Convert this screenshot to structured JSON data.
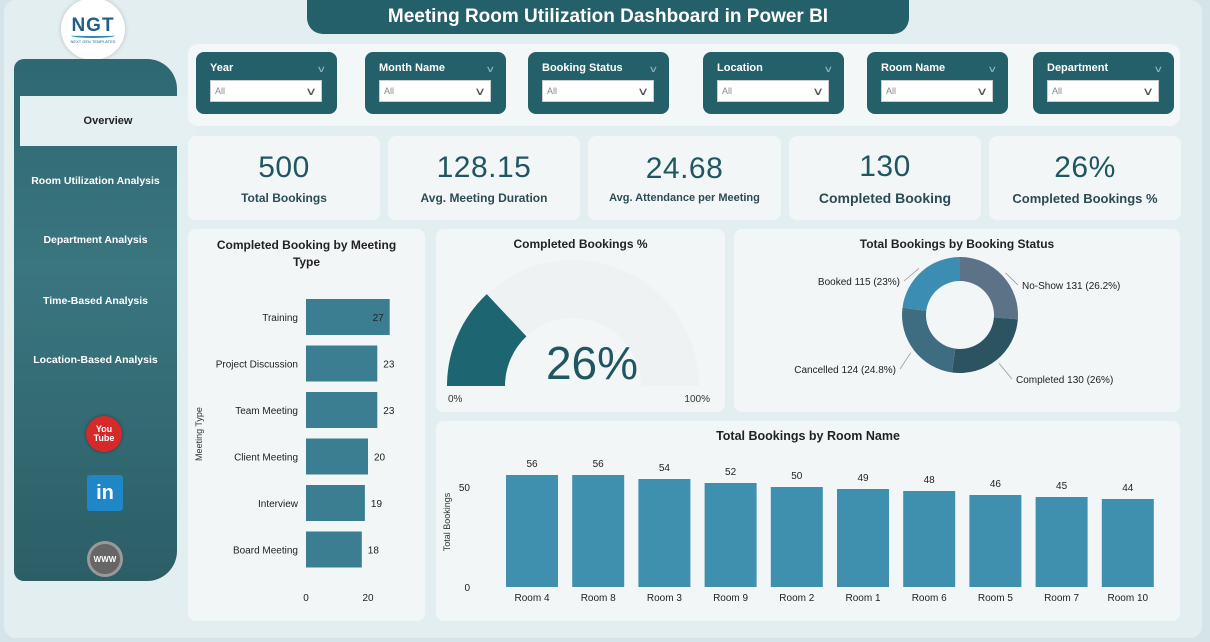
{
  "title": "Meeting Room Utilization Dashboard in Power BI",
  "logo": {
    "text": "NGT",
    "subtext": "NEXT GEN TEMPLATES"
  },
  "sidebar": {
    "items": [
      {
        "label": "Overview"
      },
      {
        "label": "Room Utilization Analysis"
      },
      {
        "label": "Department Analysis"
      },
      {
        "label": "Time-Based Analysis"
      },
      {
        "label": "Location-Based Analysis"
      }
    ],
    "social": {
      "youtube_top": "You",
      "youtube_bottom": "Tube",
      "linkedin": "in",
      "web": "WWW"
    }
  },
  "filters": [
    {
      "label": "Year",
      "value": "All"
    },
    {
      "label": "Month Name",
      "value": "All"
    },
    {
      "label": "Booking Status",
      "value": "All"
    },
    {
      "label": "Location",
      "value": "All"
    },
    {
      "label": "Room Name",
      "value": "All"
    },
    {
      "label": "Department",
      "value": "All"
    }
  ],
  "kpis": [
    {
      "value": "500",
      "label": "Total Bookings"
    },
    {
      "value": "128.15",
      "label": "Avg. Meeting Duration"
    },
    {
      "value": "24.68",
      "label": "Avg. Attendance per Meeting"
    },
    {
      "value": "130",
      "label": "Completed Booking"
    },
    {
      "value": "26%",
      "label": "Completed Bookings %"
    }
  ],
  "colors": {
    "bar": "#3b7e92",
    "bar_room": "#3f8fae",
    "gauge": "#1e6572",
    "kpi_text": "#1f5660"
  },
  "chart_data": [
    {
      "type": "bar",
      "orientation": "horizontal",
      "title": "Completed Booking by Meeting Type",
      "ylabel": "Meeting Type",
      "categories": [
        "Training",
        "Project Discussion",
        "Team Meeting",
        "Client Meeting",
        "Interview",
        "Board Meeting"
      ],
      "values": [
        27,
        23,
        23,
        20,
        19,
        18
      ],
      "xlim": [
        0,
        30
      ],
      "xticks": [
        "0",
        "20"
      ]
    },
    {
      "type": "gauge",
      "title": "Completed Bookings %",
      "value": 26,
      "value_label": "26%",
      "min_label": "0%",
      "max_label": "100%"
    },
    {
      "type": "pie",
      "donut": true,
      "title": "Total Bookings by Booking Status",
      "slices": [
        {
          "name": "No-Show",
          "value": 131,
          "label": "No-Show 131 (26.2%)",
          "color": "#5b7287"
        },
        {
          "name": "Completed",
          "value": 130,
          "label": "Completed 130 (26%)",
          "color": "#2b5360"
        },
        {
          "name": "Cancelled",
          "value": 124,
          "label": "Cancelled 124 (24.8%)",
          "color": "#3e6c80"
        },
        {
          "name": "Booked",
          "value": 115,
          "label": "Booked 115 (23%)",
          "color": "#3b8db2"
        }
      ]
    },
    {
      "type": "bar",
      "title": "Total Bookings by Room Name",
      "ylabel": "Total Bookings",
      "categories": [
        "Room 4",
        "Room 8",
        "Room 3",
        "Room 9",
        "Room 2",
        "Room 1",
        "Room 6",
        "Room 5",
        "Room 7",
        "Room 10"
      ],
      "values": [
        56,
        56,
        54,
        52,
        50,
        49,
        48,
        46,
        45,
        44
      ],
      "ylim": [
        0,
        60
      ],
      "yticks": [
        "0",
        "50"
      ]
    }
  ]
}
